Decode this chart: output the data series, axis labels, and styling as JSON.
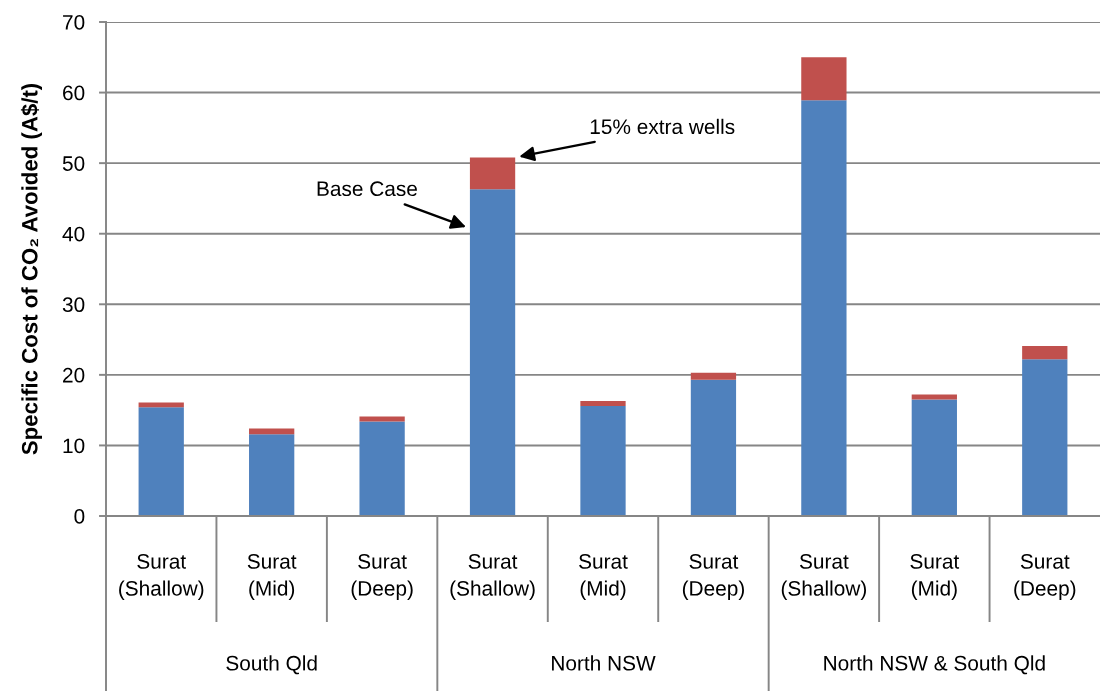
{
  "chart_data": {
    "type": "bar",
    "stacked": true,
    "ylabel": "Specific Cost of CO₂ Avoided (A$/t)",
    "categories": [
      "Surat\n(Shallow)",
      "Surat\n(Mid)",
      "Surat\n(Deep)",
      "Surat\n(Shallow)",
      "Surat\n(Mid)",
      "Surat\n(Deep)",
      "Surat\n(Shallow)",
      "Surat\n(Mid)",
      "Surat\n(Deep)"
    ],
    "series": [
      {
        "name": "Base Case",
        "color": "#4f81bd",
        "values": [
          15.4,
          11.6,
          13.4,
          46.3,
          15.6,
          19.3,
          58.9,
          16.5,
          22.2
        ]
      },
      {
        "name": "15% extra wells",
        "color": "#c0504d",
        "values": [
          0.7,
          0.8,
          0.7,
          4.5,
          0.7,
          1.0,
          6.1,
          0.7,
          1.9
        ]
      }
    ],
    "ylim": [
      0,
      70
    ],
    "yticks": [
      0,
      10,
      20,
      30,
      40,
      50,
      60,
      70
    ],
    "grid": "y",
    "annotations": [
      "South Qld",
      "North NSW",
      "North NSW & South Qld"
    ]
  }
}
